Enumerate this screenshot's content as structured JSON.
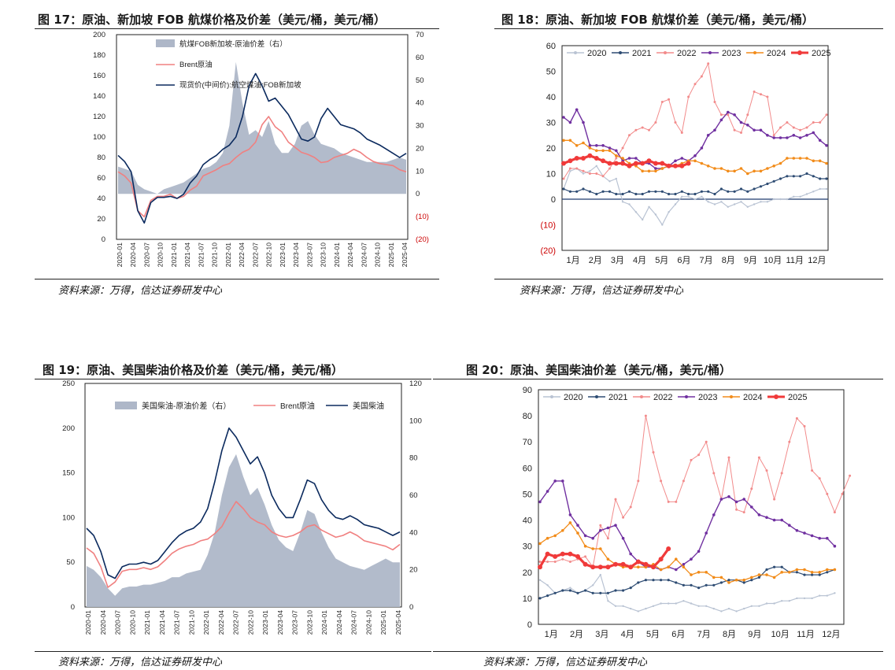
{
  "source_text": "资料来源：万得，信达证券研发中心",
  "colors": {
    "gray": "#aeb7c8",
    "brent": "#f08080",
    "navy": "#0b2a5e",
    "y2020": "#b9c3d3",
    "y2021": "#2e4c73",
    "y2022": "#f28b8b",
    "y2023": "#7030a0",
    "y2024": "#f28c1a",
    "y2025": "#f03a3a",
    "negative": "#cc0000"
  },
  "chart_data": [
    {
      "type": "area+line",
      "title": "图 17：原油、新加坡 FOB 航煤价格及价差（美元/桶，美元/桶）",
      "y_left_ticks": [
        "0",
        "20",
        "40",
        "60",
        "80",
        "100",
        "120",
        "140",
        "160",
        "180",
        "200"
      ],
      "y_right_ticks": [
        "(20)",
        "(10)",
        "0",
        "10",
        "20",
        "30",
        "40",
        "50",
        "60",
        "70"
      ],
      "ylim_left": [
        0,
        200
      ],
      "ylim_right": [
        -20,
        70
      ],
      "x_ticks": [
        "2020-01",
        "2020-04",
        "2020-07",
        "2020-10",
        "2021-01",
        "2021-04",
        "2021-07",
        "2021-10",
        "2022-01",
        "2022-04",
        "2022-07",
        "2022-10",
        "2023-01",
        "2023-04",
        "2023-07",
        "2023-10",
        "2024-01",
        "2024-04",
        "2024-07",
        "2024-10",
        "2025-01",
        "2025-04"
      ],
      "legend": [
        "航煤FOB新加坡-原油价差（右）",
        "Brent原油",
        "现货价(中间价):航空煤油:FOB新加坡"
      ],
      "series": [
        {
          "name": "航煤FOB新加坡-原油价差（右）",
          "axis": "right",
          "values": [
            12,
            11,
            10,
            4,
            2,
            1,
            0,
            2,
            3,
            4,
            5,
            7,
            9,
            11,
            12,
            14,
            18,
            30,
            58,
            40,
            26,
            28,
            25,
            32,
            22,
            18,
            18,
            22,
            30,
            32,
            26,
            22,
            21,
            20,
            18,
            17,
            16,
            15,
            14,
            14,
            14,
            14,
            15,
            16,
            15
          ]
        },
        {
          "name": "Brent原油",
          "axis": "left",
          "values": [
            66,
            62,
            55,
            28,
            22,
            38,
            42,
            42,
            44,
            40,
            42,
            48,
            52,
            62,
            65,
            68,
            72,
            74,
            80,
            85,
            88,
            95,
            112,
            120,
            110,
            105,
            95,
            90,
            85,
            83,
            80,
            75,
            76,
            80,
            82,
            84,
            88,
            85,
            80,
            76,
            74,
            73,
            72,
            68,
            66
          ]
        },
        {
          "name": "现货价(中间价):航空煤油:FOB新加坡",
          "axis": "left",
          "values": [
            82,
            76,
            66,
            28,
            16,
            36,
            41,
            41,
            42,
            40,
            44,
            55,
            62,
            73,
            78,
            82,
            88,
            92,
            100,
            120,
            150,
            162,
            150,
            135,
            138,
            130,
            122,
            110,
            98,
            96,
            100,
            118,
            128,
            120,
            112,
            110,
            108,
            104,
            98,
            95,
            92,
            88,
            84,
            80,
            84
          ]
        }
      ]
    },
    {
      "type": "line",
      "title": "图 18：原油、新加坡 FOB 航煤价差（美元/桶，美元/桶）",
      "y_ticks": [
        "(20)",
        "(10)",
        "0",
        "10",
        "20",
        "30",
        "40",
        "50",
        "60"
      ],
      "ylim": [
        -20,
        60
      ],
      "x_ticks": [
        "1月",
        "2月",
        "3月",
        "4月",
        "5月",
        "6月",
        "7月",
        "8月",
        "9月",
        "10月",
        "11月",
        "12月"
      ],
      "legend": [
        "2020",
        "2021",
        "2022",
        "2023",
        "2024",
        "2025"
      ],
      "series": [
        {
          "name": "2020",
          "values": [
            4,
            11,
            12,
            10,
            11,
            13,
            9,
            7,
            8,
            -1,
            -2,
            -5,
            -8,
            -3,
            -6,
            -10,
            -5,
            -2,
            1,
            1,
            0,
            1,
            -1,
            -2,
            -1,
            -3,
            -2,
            -1,
            -3,
            -2,
            -1,
            -1,
            0,
            0,
            0,
            1,
            1,
            2,
            3,
            4,
            4
          ]
        },
        {
          "name": "2021",
          "values": [
            4,
            3,
            3,
            4,
            3,
            2,
            3,
            3,
            2,
            2,
            3,
            2,
            2,
            3,
            3,
            3,
            2,
            2,
            3,
            2,
            2,
            3,
            3,
            2,
            4,
            3,
            3,
            4,
            3,
            4,
            5,
            6,
            7,
            8,
            9,
            9,
            9,
            10,
            9,
            8,
            8
          ]
        },
        {
          "name": "2022",
          "values": [
            8,
            12,
            12,
            11,
            10,
            10,
            9,
            12,
            16,
            20,
            25,
            27,
            28,
            27,
            30,
            38,
            39,
            30,
            26,
            40,
            45,
            48,
            53,
            38,
            33,
            33,
            27,
            26,
            33,
            42,
            41,
            40,
            25,
            28,
            30,
            28,
            27,
            28,
            30,
            30,
            33
          ]
        },
        {
          "name": "2023",
          "values": [
            32,
            30,
            35,
            30,
            21,
            21,
            21,
            20,
            19,
            15,
            16,
            16,
            14,
            14,
            12,
            12,
            13,
            15,
            16,
            15,
            17,
            20,
            25,
            27,
            31,
            34,
            33,
            30,
            29,
            27,
            27,
            25,
            24,
            24,
            24,
            25,
            24,
            25,
            26,
            23,
            21
          ]
        },
        {
          "name": "2024",
          "values": [
            23,
            23,
            21,
            22,
            20,
            19,
            19,
            19,
            17,
            16,
            14,
            13,
            11,
            11,
            11,
            12,
            13,
            13,
            14,
            15,
            15,
            14,
            13,
            12,
            12,
            11,
            11,
            12,
            10,
            11,
            11,
            12,
            13,
            14,
            16,
            16,
            16,
            16,
            15,
            15,
            14
          ]
        },
        {
          "name": "2025",
          "values": [
            14,
            15,
            16,
            16,
            17,
            16,
            15,
            14,
            14,
            14,
            13,
            14,
            14,
            15,
            14,
            14,
            13,
            13,
            13,
            14
          ]
        }
      ]
    },
    {
      "type": "area+line",
      "title": "图 19：原油、美国柴油价格及价差（美元/桶，美元/桶）",
      "y_left_ticks": [
        "0",
        "50",
        "100",
        "150",
        "200",
        "250"
      ],
      "y_right_ticks": [
        "0",
        "20",
        "40",
        "60",
        "80",
        "100",
        "120"
      ],
      "ylim_left": [
        0,
        250
      ],
      "ylim_right": [
        0,
        120
      ],
      "x_ticks": [
        "2020-01",
        "2020-04",
        "2020-07",
        "2020-10",
        "2021-01",
        "2021-04",
        "2021-07",
        "2021-10",
        "2022-01",
        "2022-04",
        "2022-07",
        "2022-10",
        "2023-01",
        "2023-04",
        "2023-07",
        "2023-10",
        "2024-01",
        "2024-04",
        "2024-07",
        "2024-10",
        "2025-01",
        "2025-04"
      ],
      "legend": [
        "美国柴油-原油价差（右）",
        "Brent原油",
        "美国柴油"
      ],
      "series": [
        {
          "name": "美国柴油-原油价差（右）",
          "axis": "right",
          "values": [
            22,
            20,
            16,
            10,
            6,
            10,
            11,
            11,
            12,
            12,
            13,
            14,
            16,
            16,
            18,
            19,
            20,
            28,
            40,
            60,
            75,
            82,
            70,
            60,
            64,
            55,
            44,
            36,
            32,
            30,
            40,
            52,
            50,
            40,
            32,
            26,
            24,
            22,
            21,
            20,
            22,
            24,
            26,
            24,
            24
          ]
        },
        {
          "name": "Brent原油",
          "axis": "left",
          "values": [
            66,
            60,
            45,
            22,
            28,
            40,
            42,
            42,
            44,
            42,
            45,
            52,
            60,
            65,
            68,
            70,
            74,
            76,
            82,
            90,
            105,
            118,
            110,
            100,
            95,
            92,
            84,
            80,
            78,
            80,
            84,
            90,
            92,
            86,
            82,
            78,
            80,
            84,
            80,
            74,
            72,
            70,
            68,
            64,
            70
          ]
        },
        {
          "name": "美国柴油",
          "axis": "left",
          "values": [
            88,
            80,
            62,
            36,
            32,
            45,
            48,
            48,
            50,
            48,
            52,
            62,
            72,
            80,
            85,
            88,
            95,
            110,
            140,
            175,
            200,
            190,
            175,
            160,
            168,
            150,
            125,
            110,
            100,
            100,
            120,
            142,
            138,
            120,
            108,
            100,
            98,
            102,
            98,
            92,
            90,
            88,
            84,
            80,
            84
          ]
        }
      ]
    },
    {
      "type": "line",
      "title": "图 20：原油、美国柴油价差（美元/桶，美元/桶）",
      "y_ticks": [
        "0",
        "10",
        "20",
        "30",
        "40",
        "50",
        "60",
        "70",
        "80",
        "90"
      ],
      "ylim": [
        0,
        90
      ],
      "x_ticks": [
        "1月",
        "2月",
        "3月",
        "4月",
        "5月",
        "6月",
        "7月",
        "8月",
        "9月",
        "10月",
        "11月",
        "12月"
      ],
      "legend": [
        "2020",
        "2021",
        "2022",
        "2023",
        "2024",
        "2025"
      ],
      "series": [
        {
          "name": "2020",
          "values": [
            17,
            15,
            12,
            13,
            14,
            12,
            13,
            15,
            19,
            9,
            7,
            7,
            6,
            5,
            6,
            7,
            8,
            8,
            8,
            9,
            8,
            7,
            7,
            6,
            5,
            6,
            5,
            6,
            7,
            7,
            8,
            8,
            9,
            9,
            10,
            10,
            10,
            11,
            11,
            12
          ]
        },
        {
          "name": "2021",
          "values": [
            10,
            11,
            12,
            13,
            13,
            12,
            13,
            12,
            12,
            12,
            13,
            13,
            14,
            16,
            17,
            17,
            17,
            17,
            16,
            15,
            15,
            14,
            15,
            15,
            16,
            17,
            17,
            16,
            17,
            18,
            21,
            22,
            22,
            20,
            20,
            19,
            19,
            19,
            20,
            21
          ]
        },
        {
          "name": "2022",
          "values": [
            24,
            24,
            24,
            25,
            24,
            25,
            26,
            22,
            38,
            33,
            48,
            41,
            45,
            55,
            80,
            66,
            55,
            47,
            47,
            55,
            63,
            65,
            70,
            58,
            48,
            64,
            44,
            43,
            52,
            64,
            59,
            48,
            58,
            70,
            79,
            76,
            59,
            56,
            50,
            43,
            50,
            57
          ]
        },
        {
          "name": "2023",
          "values": [
            47,
            51,
            55,
            55,
            42,
            38,
            34,
            33,
            36,
            37,
            38,
            33,
            27,
            24,
            22,
            22,
            21,
            22,
            21,
            23,
            25,
            28,
            35,
            42,
            48,
            49,
            47,
            48,
            45,
            42,
            41,
            40,
            40,
            38,
            36,
            35,
            34,
            33,
            33,
            30
          ]
        },
        {
          "name": "2024",
          "values": [
            31,
            33,
            34,
            36,
            39,
            35,
            30,
            29,
            29,
            25,
            23,
            22,
            22,
            22,
            22,
            23,
            21,
            22,
            25,
            22,
            19,
            20,
            20,
            18,
            18,
            16,
            17,
            17,
            18,
            19,
            19,
            18,
            20,
            20,
            21,
            21,
            20,
            20,
            21,
            21
          ]
        },
        {
          "name": "2025",
          "values": [
            22,
            27,
            26,
            27,
            27,
            26,
            23,
            22,
            22,
            22,
            23,
            23,
            22,
            24,
            23,
            22,
            25,
            29
          ]
        }
      ]
    }
  ]
}
